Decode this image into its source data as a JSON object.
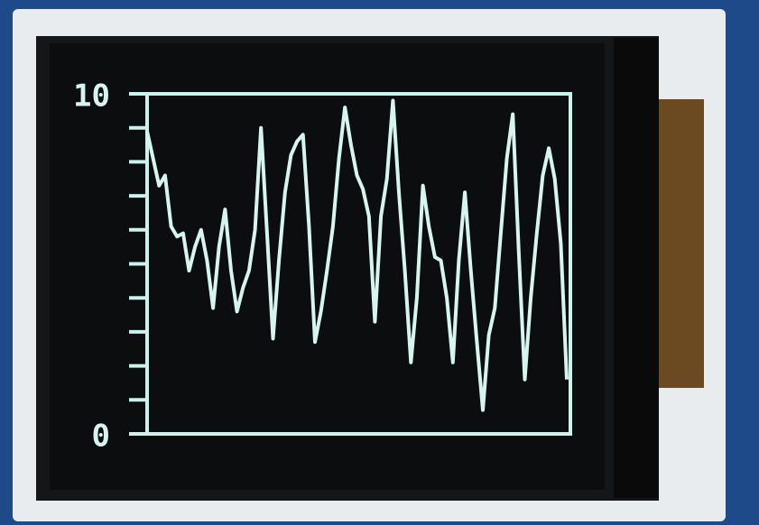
{
  "chart_data": {
    "type": "line",
    "values": [
      8.9,
      8.1,
      7.3,
      7.6,
      6.1,
      5.8,
      5.9,
      4.8,
      5.5,
      6.0,
      5.1,
      3.7,
      5.5,
      6.6,
      4.8,
      3.6,
      4.3,
      4.8,
      6.0,
      9.0,
      5.9,
      2.8,
      5.1,
      7.1,
      8.2,
      8.6,
      8.8,
      6.1,
      2.7,
      3.6,
      4.8,
      6.1,
      8.1,
      9.6,
      8.5,
      7.6,
      7.2,
      6.4,
      3.3,
      6.4,
      7.5,
      9.8,
      7.1,
      4.8,
      2.1,
      4.0,
      7.3,
      6.1,
      5.2,
      5.1,
      4.0,
      2.1,
      5.1,
      7.1,
      4.8,
      2.7,
      0.7,
      2.9,
      3.7,
      5.9,
      8.1,
      9.4,
      5.3,
      1.6,
      4.0,
      5.9,
      7.6,
      8.4,
      7.5,
      5.6,
      1.6
    ],
    "color": "#d6f5ee",
    "ylim": [
      0,
      10
    ],
    "yticks": [
      0,
      10
    ],
    "minor_yticks": [
      1,
      2,
      3,
      4,
      5,
      6,
      7,
      8,
      9
    ]
  }
}
